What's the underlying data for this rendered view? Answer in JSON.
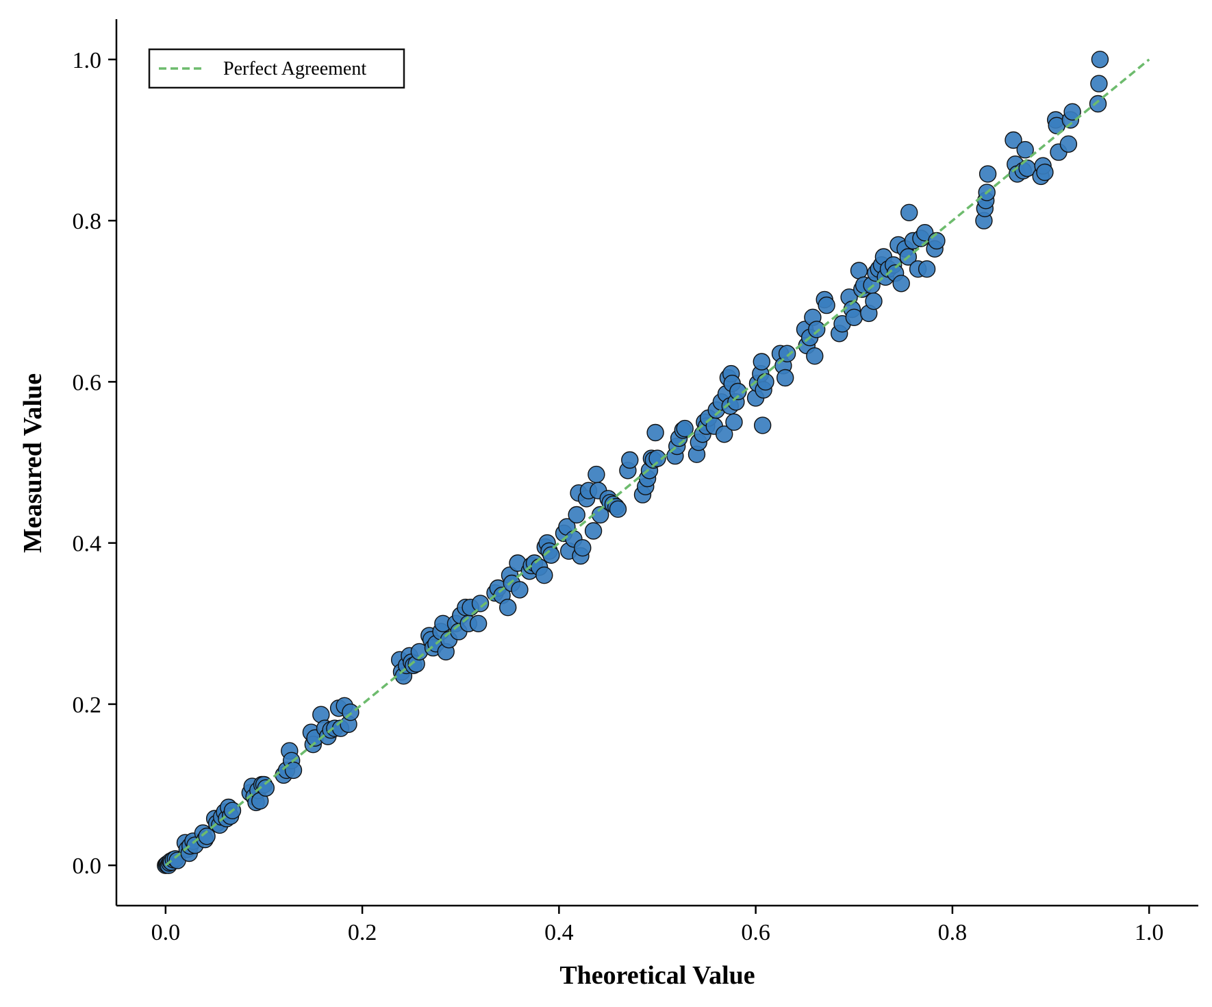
{
  "chart_data": {
    "type": "scatter",
    "title": "",
    "xlabel": "Theoretical Value",
    "ylabel": "Measured Value",
    "xlim": [
      -0.05,
      1.05
    ],
    "ylim": [
      -0.05,
      1.05
    ],
    "xticks": [
      0.0,
      0.2,
      0.4,
      0.6,
      0.8,
      1.0
    ],
    "yticks": [
      0.0,
      0.2,
      0.4,
      0.6,
      0.8,
      1.0
    ],
    "xtick_labels": [
      "0.0",
      "0.2",
      "0.4",
      "0.6",
      "0.8",
      "1.0"
    ],
    "ytick_labels": [
      "0.0",
      "0.2",
      "0.4",
      "0.6",
      "0.8",
      "1.0"
    ],
    "grid": false,
    "legend_position": "top-left",
    "legend_entries": [
      "Perfect Agreement"
    ],
    "colors": {
      "points": "#3a7ebf",
      "point_edge": "#111111",
      "reference_line": "#6dbb6d",
      "axis": "#000000"
    },
    "reference_line": {
      "name": "Perfect Agreement",
      "style": "dashed",
      "x": [
        0.0,
        1.0
      ],
      "y": [
        0.0,
        1.0
      ]
    },
    "series": [
      {
        "points": [
          [
            0.0,
            0.0
          ],
          [
            0.001,
            0.001
          ],
          [
            0.002,
            0.002
          ],
          [
            0.003,
            0.0
          ],
          [
            0.004,
            0.003
          ],
          [
            0.005,
            0.005
          ],
          [
            0.006,
            0.004
          ],
          [
            0.008,
            0.007
          ],
          [
            0.01,
            0.008
          ],
          [
            0.012,
            0.006
          ],
          [
            0.02,
            0.028
          ],
          [
            0.022,
            0.02
          ],
          [
            0.024,
            0.015
          ],
          [
            0.025,
            0.024
          ],
          [
            0.028,
            0.03
          ],
          [
            0.03,
            0.025
          ],
          [
            0.038,
            0.04
          ],
          [
            0.04,
            0.032
          ],
          [
            0.042,
            0.036
          ],
          [
            0.05,
            0.058
          ],
          [
            0.052,
            0.052
          ],
          [
            0.055,
            0.05
          ],
          [
            0.057,
            0.06
          ],
          [
            0.06,
            0.066
          ],
          [
            0.062,
            0.058
          ],
          [
            0.064,
            0.072
          ],
          [
            0.066,
            0.061
          ],
          [
            0.068,
            0.068
          ],
          [
            0.086,
            0.09
          ],
          [
            0.088,
            0.098
          ],
          [
            0.09,
            0.085
          ],
          [
            0.092,
            0.078
          ],
          [
            0.094,
            0.093
          ],
          [
            0.096,
            0.08
          ],
          [
            0.098,
            0.1
          ],
          [
            0.1,
            0.1
          ],
          [
            0.102,
            0.096
          ],
          [
            0.12,
            0.112
          ],
          [
            0.123,
            0.118
          ],
          [
            0.126,
            0.142
          ],
          [
            0.128,
            0.13
          ],
          [
            0.13,
            0.118
          ],
          [
            0.148,
            0.165
          ],
          [
            0.15,
            0.15
          ],
          [
            0.152,
            0.158
          ],
          [
            0.158,
            0.187
          ],
          [
            0.162,
            0.17
          ],
          [
            0.165,
            0.16
          ],
          [
            0.168,
            0.168
          ],
          [
            0.172,
            0.17
          ],
          [
            0.176,
            0.195
          ],
          [
            0.178,
            0.17
          ],
          [
            0.182,
            0.198
          ],
          [
            0.186,
            0.175
          ],
          [
            0.188,
            0.19
          ],
          [
            0.238,
            0.255
          ],
          [
            0.24,
            0.24
          ],
          [
            0.242,
            0.235
          ],
          [
            0.245,
            0.248
          ],
          [
            0.248,
            0.26
          ],
          [
            0.25,
            0.252
          ],
          [
            0.252,
            0.248
          ],
          [
            0.255,
            0.25
          ],
          [
            0.258,
            0.265
          ],
          [
            0.268,
            0.285
          ],
          [
            0.27,
            0.28
          ],
          [
            0.272,
            0.27
          ],
          [
            0.275,
            0.275
          ],
          [
            0.28,
            0.29
          ],
          [
            0.282,
            0.3
          ],
          [
            0.285,
            0.265
          ],
          [
            0.288,
            0.28
          ],
          [
            0.295,
            0.3
          ],
          [
            0.298,
            0.29
          ],
          [
            0.3,
            0.31
          ],
          [
            0.305,
            0.32
          ],
          [
            0.308,
            0.3
          ],
          [
            0.31,
            0.32
          ],
          [
            0.318,
            0.3
          ],
          [
            0.32,
            0.325
          ],
          [
            0.335,
            0.338
          ],
          [
            0.338,
            0.344
          ],
          [
            0.342,
            0.335
          ],
          [
            0.348,
            0.32
          ],
          [
            0.35,
            0.36
          ],
          [
            0.352,
            0.35
          ],
          [
            0.358,
            0.375
          ],
          [
            0.36,
            0.342
          ],
          [
            0.37,
            0.365
          ],
          [
            0.372,
            0.372
          ],
          [
            0.375,
            0.375
          ],
          [
            0.38,
            0.37
          ],
          [
            0.385,
            0.36
          ],
          [
            0.386,
            0.395
          ],
          [
            0.388,
            0.4
          ],
          [
            0.39,
            0.39
          ],
          [
            0.392,
            0.385
          ],
          [
            0.405,
            0.412
          ],
          [
            0.408,
            0.42
          ],
          [
            0.41,
            0.39
          ],
          [
            0.415,
            0.405
          ],
          [
            0.418,
            0.435
          ],
          [
            0.42,
            0.462
          ],
          [
            0.422,
            0.384
          ],
          [
            0.424,
            0.394
          ],
          [
            0.428,
            0.455
          ],
          [
            0.43,
            0.465
          ],
          [
            0.435,
            0.415
          ],
          [
            0.438,
            0.485
          ],
          [
            0.44,
            0.465
          ],
          [
            0.442,
            0.435
          ],
          [
            0.45,
            0.455
          ],
          [
            0.452,
            0.45
          ],
          [
            0.455,
            0.448
          ],
          [
            0.458,
            0.445
          ],
          [
            0.46,
            0.442
          ],
          [
            0.47,
            0.49
          ],
          [
            0.472,
            0.503
          ],
          [
            0.485,
            0.46
          ],
          [
            0.488,
            0.47
          ],
          [
            0.49,
            0.48
          ],
          [
            0.492,
            0.49
          ],
          [
            0.494,
            0.505
          ],
          [
            0.496,
            0.503
          ],
          [
            0.498,
            0.537
          ],
          [
            0.5,
            0.505
          ],
          [
            0.518,
            0.508
          ],
          [
            0.52,
            0.52
          ],
          [
            0.522,
            0.53
          ],
          [
            0.526,
            0.54
          ],
          [
            0.528,
            0.542
          ],
          [
            0.54,
            0.51
          ],
          [
            0.542,
            0.525
          ],
          [
            0.546,
            0.535
          ],
          [
            0.548,
            0.55
          ],
          [
            0.55,
            0.545
          ],
          [
            0.552,
            0.555
          ],
          [
            0.558,
            0.545
          ],
          [
            0.56,
            0.565
          ],
          [
            0.565,
            0.575
          ],
          [
            0.568,
            0.535
          ],
          [
            0.57,
            0.585
          ],
          [
            0.572,
            0.605
          ],
          [
            0.574,
            0.57
          ],
          [
            0.575,
            0.61
          ],
          [
            0.576,
            0.598
          ],
          [
            0.578,
            0.55
          ],
          [
            0.58,
            0.575
          ],
          [
            0.582,
            0.588
          ],
          [
            0.6,
            0.58
          ],
          [
            0.602,
            0.598
          ],
          [
            0.605,
            0.61
          ],
          [
            0.606,
            0.625
          ],
          [
            0.607,
            0.546
          ],
          [
            0.608,
            0.59
          ],
          [
            0.61,
            0.6
          ],
          [
            0.625,
            0.635
          ],
          [
            0.628,
            0.62
          ],
          [
            0.63,
            0.605
          ],
          [
            0.632,
            0.635
          ],
          [
            0.65,
            0.665
          ],
          [
            0.652,
            0.645
          ],
          [
            0.655,
            0.655
          ],
          [
            0.658,
            0.68
          ],
          [
            0.66,
            0.632
          ],
          [
            0.662,
            0.665
          ],
          [
            0.67,
            0.702
          ],
          [
            0.672,
            0.695
          ],
          [
            0.685,
            0.66
          ],
          [
            0.688,
            0.672
          ],
          [
            0.695,
            0.705
          ],
          [
            0.698,
            0.69
          ],
          [
            0.7,
            0.68
          ],
          [
            0.705,
            0.738
          ],
          [
            0.708,
            0.715
          ],
          [
            0.71,
            0.72
          ],
          [
            0.715,
            0.685
          ],
          [
            0.718,
            0.72
          ],
          [
            0.72,
            0.7
          ],
          [
            0.722,
            0.735
          ],
          [
            0.725,
            0.74
          ],
          [
            0.728,
            0.745
          ],
          [
            0.73,
            0.755
          ],
          [
            0.732,
            0.73
          ],
          [
            0.735,
            0.74
          ],
          [
            0.74,
            0.745
          ],
          [
            0.742,
            0.735
          ],
          [
            0.745,
            0.77
          ],
          [
            0.748,
            0.722
          ],
          [
            0.752,
            0.765
          ],
          [
            0.755,
            0.755
          ],
          [
            0.756,
            0.81
          ],
          [
            0.76,
            0.775
          ],
          [
            0.765,
            0.74
          ],
          [
            0.768,
            0.778
          ],
          [
            0.772,
            0.785
          ],
          [
            0.774,
            0.74
          ],
          [
            0.782,
            0.765
          ],
          [
            0.784,
            0.775
          ],
          [
            0.832,
            0.8
          ],
          [
            0.833,
            0.815
          ],
          [
            0.834,
            0.825
          ],
          [
            0.835,
            0.835
          ],
          [
            0.836,
            0.858
          ],
          [
            0.862,
            0.9
          ],
          [
            0.864,
            0.87
          ],
          [
            0.866,
            0.858
          ],
          [
            0.872,
            0.862
          ],
          [
            0.874,
            0.888
          ],
          [
            0.876,
            0.865
          ],
          [
            0.89,
            0.855
          ],
          [
            0.892,
            0.868
          ],
          [
            0.894,
            0.86
          ],
          [
            0.905,
            0.925
          ],
          [
            0.906,
            0.918
          ],
          [
            0.908,
            0.885
          ],
          [
            0.918,
            0.895
          ],
          [
            0.92,
            0.925
          ],
          [
            0.922,
            0.935
          ],
          [
            0.948,
            0.945
          ],
          [
            0.949,
            0.97
          ],
          [
            0.95,
            1.0
          ]
        ]
      }
    ]
  }
}
